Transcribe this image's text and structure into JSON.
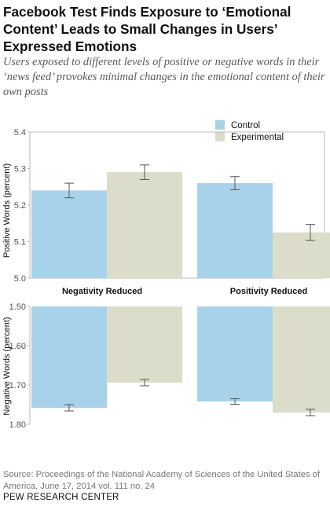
{
  "title": "Facebook Test Finds Exposure to ‘Emotional Content’ Leads to Small Changes in Users’ Expressed Emotions",
  "subtitle": "Users exposed to different levels of positive or negative words in their ‘news feed’ provokes minimal changes in the emotional content of their own posts",
  "source": "Source: Proceedings of the National Academy of Sciences of the United States of America, June 17, 2014 vol. 111 no. 24",
  "brand": "PEW RESEARCH CENTER",
  "colors": {
    "control": "#a8d2ea",
    "experimental": "#dcdccb",
    "errorbar": "#555555",
    "frame": "#bbbbbb"
  },
  "chart_data": [
    {
      "type": "bar",
      "ylabel": "Positive Words (percent)",
      "ylim": [
        5.0,
        5.4
      ],
      "yticks": [
        "5.0",
        "5.1",
        "5.2",
        "5.3",
        "5.4"
      ],
      "categories": [
        "Negativity Reduced",
        "Positivity Reduced"
      ],
      "legend_placement": "top-center",
      "series": [
        {
          "name": "Control",
          "values": [
            5.24,
            5.26
          ],
          "error": [
            0.02,
            0.018
          ]
        },
        {
          "name": "Experimental",
          "values": [
            5.29,
            5.125
          ],
          "error": [
            0.02,
            0.022
          ]
        }
      ]
    },
    {
      "type": "bar",
      "ylabel": "Negative Words (percent)",
      "ylim": [
        1.5,
        1.8
      ],
      "inverted": true,
      "yticks": [
        "1.50",
        "1.60",
        "1.70",
        "1.80"
      ],
      "categories": [
        "Negativity Reduced",
        "Positivity Reduced"
      ],
      "series": [
        {
          "name": "Control",
          "values": [
            1.758,
            1.742
          ],
          "error": [
            0.008,
            0.007
          ]
        },
        {
          "name": "Experimental",
          "values": [
            1.694,
            1.77
          ],
          "error": [
            0.008,
            0.008
          ]
        }
      ]
    }
  ]
}
